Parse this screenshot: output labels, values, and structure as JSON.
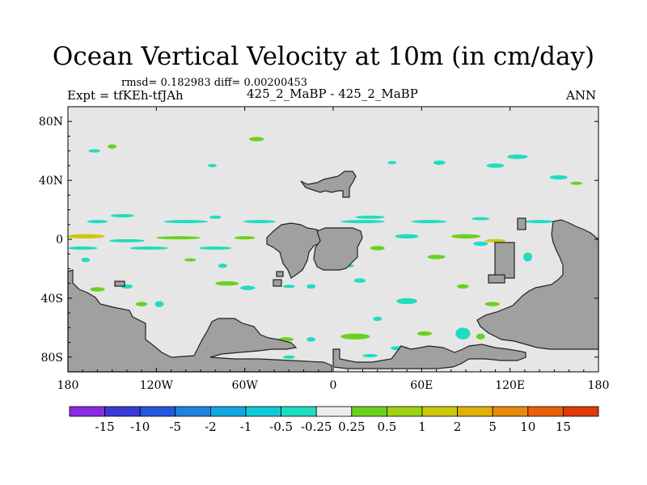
{
  "header": {
    "title": "Ocean Vertical Velocity at 10m (in cm/day)",
    "stats": "rmsd= 0.182983 diff= 0.00200453",
    "expt": "Expt = tfKEh-tfJAh",
    "cases": "425_2_MaBP - 425_2_MaBP",
    "season": "ANN"
  },
  "chart_data": {
    "type": "heatmap",
    "title": "Ocean Vertical Velocity at 10m (in cm/day)",
    "xlabel": "",
    "ylabel": "",
    "xlim": [
      -180,
      180
    ],
    "ylim": [
      -90,
      90
    ],
    "x_ticks": [
      {
        "value": -180,
        "label": "180"
      },
      {
        "value": -120,
        "label": "120W"
      },
      {
        "value": -60,
        "label": "60W"
      },
      {
        "value": 0,
        "label": "0"
      },
      {
        "value": 60,
        "label": "60E"
      },
      {
        "value": 120,
        "label": "120E"
      },
      {
        "value": 180,
        "label": "180"
      }
    ],
    "y_ticks": [
      {
        "value": 80,
        "label": "80N"
      },
      {
        "value": 40,
        "label": "40N"
      },
      {
        "value": 0,
        "label": "0"
      },
      {
        "value": -40,
        "label": "40S"
      },
      {
        "value": -80,
        "label": "80S"
      }
    ],
    "colorbar": {
      "labels": [
        "-15",
        "-10",
        "-5",
        "-2",
        "-1",
        "-0.5",
        "-0.25",
        "0.25",
        "0.5",
        "1",
        "2",
        "5",
        "10",
        "15"
      ],
      "colors": [
        "#8a2be2",
        "#3a3ad6",
        "#2456e0",
        "#1e82e0",
        "#12a8e0",
        "#12c8d8",
        "#20dcc0",
        "#ececec",
        "#6ad21e",
        "#9ed214",
        "#ccc80a",
        "#e0b00a",
        "#e68a0a",
        "#e8600a",
        "#e03a0a"
      ]
    },
    "land_color": "#a0a0a0",
    "background_color": "#e6e6e6",
    "patches": [
      {
        "lon": -162,
        "lat": 60,
        "w": 8,
        "h": 2,
        "color": "#20dcc0"
      },
      {
        "lon": -150,
        "lat": 63,
        "w": 6,
        "h": 3,
        "color": "#6ad21e"
      },
      {
        "lon": -52,
        "lat": 68,
        "w": 10,
        "h": 3,
        "color": "#6ad21e"
      },
      {
        "lon": -82,
        "lat": 50,
        "w": 6,
        "h": 2,
        "color": "#20dcc0"
      },
      {
        "lon": 125,
        "lat": 56,
        "w": 14,
        "h": 3,
        "color": "#20dcc0"
      },
      {
        "lon": 40,
        "lat": 52,
        "w": 6,
        "h": 2,
        "color": "#20dcc0"
      },
      {
        "lon": 72,
        "lat": 52,
        "w": 8,
        "h": 3,
        "color": "#20dcc0"
      },
      {
        "lon": 110,
        "lat": 50,
        "w": 12,
        "h": 3,
        "color": "#20dcc0"
      },
      {
        "lon": 153,
        "lat": 42,
        "w": 12,
        "h": 3,
        "color": "#20dcc0"
      },
      {
        "lon": 165,
        "lat": 38,
        "w": 8,
        "h": 2,
        "color": "#6ad21e"
      },
      {
        "lon": -143,
        "lat": 16,
        "w": 16,
        "h": 2,
        "color": "#20dcc0"
      },
      {
        "lon": -80,
        "lat": 15,
        "w": 8,
        "h": 2,
        "color": "#20dcc0"
      },
      {
        "lon": 25,
        "lat": 15,
        "w": 20,
        "h": 2,
        "color": "#20dcc0"
      },
      {
        "lon": 100,
        "lat": 14,
        "w": 12,
        "h": 2,
        "color": "#20dcc0"
      },
      {
        "lon": -160,
        "lat": 12,
        "w": 14,
        "h": 2,
        "color": "#20dcc0"
      },
      {
        "lon": -100,
        "lat": 12,
        "w": 30,
        "h": 2,
        "color": "#20dcc0"
      },
      {
        "lon": -50,
        "lat": 12,
        "w": 22,
        "h": 2,
        "color": "#20dcc0"
      },
      {
        "lon": 20,
        "lat": 12,
        "w": 30,
        "h": 2,
        "color": "#20dcc0"
      },
      {
        "lon": 65,
        "lat": 12,
        "w": 24,
        "h": 2,
        "color": "#20dcc0"
      },
      {
        "lon": 140,
        "lat": 12,
        "w": 20,
        "h": 2,
        "color": "#20dcc0"
      },
      {
        "lon": -168,
        "lat": 2,
        "w": 26,
        "h": 3,
        "color": "#ccc80a"
      },
      {
        "lon": -140,
        "lat": -1,
        "w": 24,
        "h": 2,
        "color": "#20dcc0"
      },
      {
        "lon": -105,
        "lat": 1,
        "w": 30,
        "h": 2,
        "color": "#6ad21e"
      },
      {
        "lon": -60,
        "lat": 1,
        "w": 14,
        "h": 2,
        "color": "#6ad21e"
      },
      {
        "lon": 50,
        "lat": 2,
        "w": 16,
        "h": 3,
        "color": "#20dcc0"
      },
      {
        "lon": 90,
        "lat": 2,
        "w": 20,
        "h": 3,
        "color": "#6ad21e"
      },
      {
        "lon": 110,
        "lat": -1,
        "w": 14,
        "h": 2,
        "color": "#ccc80a"
      },
      {
        "lon": 168,
        "lat": 1,
        "w": 14,
        "h": 3,
        "color": "#6ad21e"
      },
      {
        "lon": -170,
        "lat": -6,
        "w": 20,
        "h": 2,
        "color": "#20dcc0"
      },
      {
        "lon": -125,
        "lat": -6,
        "w": 26,
        "h": 2,
        "color": "#20dcc0"
      },
      {
        "lon": -80,
        "lat": -6,
        "w": 22,
        "h": 2,
        "color": "#20dcc0"
      },
      {
        "lon": 30,
        "lat": -6,
        "w": 10,
        "h": 3,
        "color": "#6ad21e"
      },
      {
        "lon": 70,
        "lat": -12,
        "w": 12,
        "h": 3,
        "color": "#6ad21e"
      },
      {
        "lon": 100,
        "lat": -3,
        "w": 10,
        "h": 3,
        "color": "#20dcc0"
      },
      {
        "lon": -168,
        "lat": -14,
        "w": 6,
        "h": 3,
        "color": "#20dcc0"
      },
      {
        "lon": -97,
        "lat": -14,
        "w": 8,
        "h": 2,
        "color": "#6ad21e"
      },
      {
        "lon": -75,
        "lat": -18,
        "w": 6,
        "h": 3,
        "color": "#20dcc0"
      },
      {
        "lon": 10,
        "lat": -18,
        "w": 8,
        "h": 2,
        "color": "#20dcc0"
      },
      {
        "lon": 132,
        "lat": -12,
        "w": 6,
        "h": 6,
        "color": "#20dcc0"
      },
      {
        "lon": -160,
        "lat": -34,
        "w": 10,
        "h": 3,
        "color": "#6ad21e"
      },
      {
        "lon": -140,
        "lat": -32,
        "w": 8,
        "h": 3,
        "color": "#20dcc0"
      },
      {
        "lon": -72,
        "lat": -30,
        "w": 16,
        "h": 3,
        "color": "#6ad21e"
      },
      {
        "lon": -58,
        "lat": -33,
        "w": 10,
        "h": 3,
        "color": "#20dcc0"
      },
      {
        "lon": -30,
        "lat": -32,
        "w": 8,
        "h": 2,
        "color": "#20dcc0"
      },
      {
        "lon": 18,
        "lat": -28,
        "w": 8,
        "h": 3,
        "color": "#20dcc0"
      },
      {
        "lon": -15,
        "lat": -32,
        "w": 6,
        "h": 3,
        "color": "#20dcc0"
      },
      {
        "lon": 88,
        "lat": -32,
        "w": 8,
        "h": 3,
        "color": "#6ad21e"
      },
      {
        "lon": -130,
        "lat": -44,
        "w": 8,
        "h": 3,
        "color": "#6ad21e"
      },
      {
        "lon": -118,
        "lat": -44,
        "w": 6,
        "h": 4,
        "color": "#20dcc0"
      },
      {
        "lon": 50,
        "lat": -42,
        "w": 14,
        "h": 4,
        "color": "#20dcc0"
      },
      {
        "lon": 108,
        "lat": -44,
        "w": 10,
        "h": 3,
        "color": "#6ad21e"
      },
      {
        "lon": -150,
        "lat": -52,
        "w": 6,
        "h": 3,
        "color": "#20dcc0"
      },
      {
        "lon": 30,
        "lat": -54,
        "w": 6,
        "h": 3,
        "color": "#20dcc0"
      },
      {
        "lon": 15,
        "lat": -66,
        "w": 20,
        "h": 4,
        "color": "#6ad21e"
      },
      {
        "lon": 62,
        "lat": -64,
        "w": 10,
        "h": 3,
        "color": "#6ad21e"
      },
      {
        "lon": -32,
        "lat": -68,
        "w": 10,
        "h": 3,
        "color": "#6ad21e"
      },
      {
        "lon": -15,
        "lat": -68,
        "w": 6,
        "h": 3,
        "color": "#20dcc0"
      },
      {
        "lon": 88,
        "lat": -64,
        "w": 10,
        "h": 8,
        "color": "#20dcc0"
      },
      {
        "lon": 100,
        "lat": -66,
        "w": 6,
        "h": 4,
        "color": "#6ad21e"
      },
      {
        "lon": 45,
        "lat": -74,
        "w": 12,
        "h": 3,
        "color": "#20dcc0"
      },
      {
        "lon": 74,
        "lat": -76,
        "w": 10,
        "h": 3,
        "color": "#6ad21e"
      },
      {
        "lon": -52,
        "lat": -74,
        "w": 6,
        "h": 3,
        "color": "#20dcc0"
      },
      {
        "lon": 25,
        "lat": -79,
        "w": 10,
        "h": 2,
        "color": "#20dcc0"
      },
      {
        "lon": -30,
        "lat": -80,
        "w": 8,
        "h": 2,
        "color": "#20dcc0"
      }
    ]
  }
}
